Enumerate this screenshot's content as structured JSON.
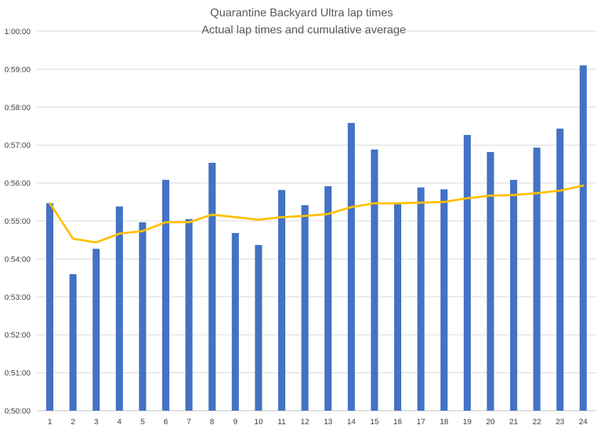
{
  "chart_data": {
    "type": "bar",
    "title": "Quarantine Backyard Ultra lap times",
    "subtitle": "Actual lap times and cumulative average",
    "xlabel": "",
    "ylabel": "",
    "categories": [
      "1",
      "2",
      "3",
      "4",
      "5",
      "6",
      "7",
      "8",
      "9",
      "10",
      "11",
      "12",
      "13",
      "14",
      "15",
      "16",
      "17",
      "18",
      "19",
      "20",
      "21",
      "22",
      "23",
      "24"
    ],
    "y_unit": "seconds",
    "ylim": [
      3000,
      3600
    ],
    "y_ticks": [
      3000,
      3060,
      3120,
      3180,
      3240,
      3300,
      3360,
      3420,
      3480,
      3540,
      3600
    ],
    "y_tick_labels": [
      "0:50:00",
      "0:51:00",
      "0:52:00",
      "0:53:00",
      "0:54:00",
      "0:55:00",
      "0:56:00",
      "0:57:00",
      "0:58:00",
      "0:59:00",
      "1:00:00"
    ],
    "grid": true,
    "series": [
      {
        "type": "bar",
        "color": "#4472C4",
        "values": [
          3328,
          3216,
          3256,
          3323,
          3298,
          3365,
          3303,
          3392,
          3281,
          3262,
          3349,
          3325,
          3355,
          3455,
          3413,
          3327,
          3353,
          3350,
          3436,
          3409,
          3365,
          3416,
          3446,
          3546
        ]
      },
      {
        "type": "line",
        "color": "#FFC000",
        "values": [
          3328,
          3272,
          3266,
          3280,
          3284,
          3298,
          3298,
          3310,
          3306,
          3302,
          3306,
          3308,
          3311,
          3322,
          3328,
          3328,
          3329,
          3330,
          3336,
          3340,
          3341,
          3344,
          3348,
          3356
        ]
      }
    ]
  }
}
